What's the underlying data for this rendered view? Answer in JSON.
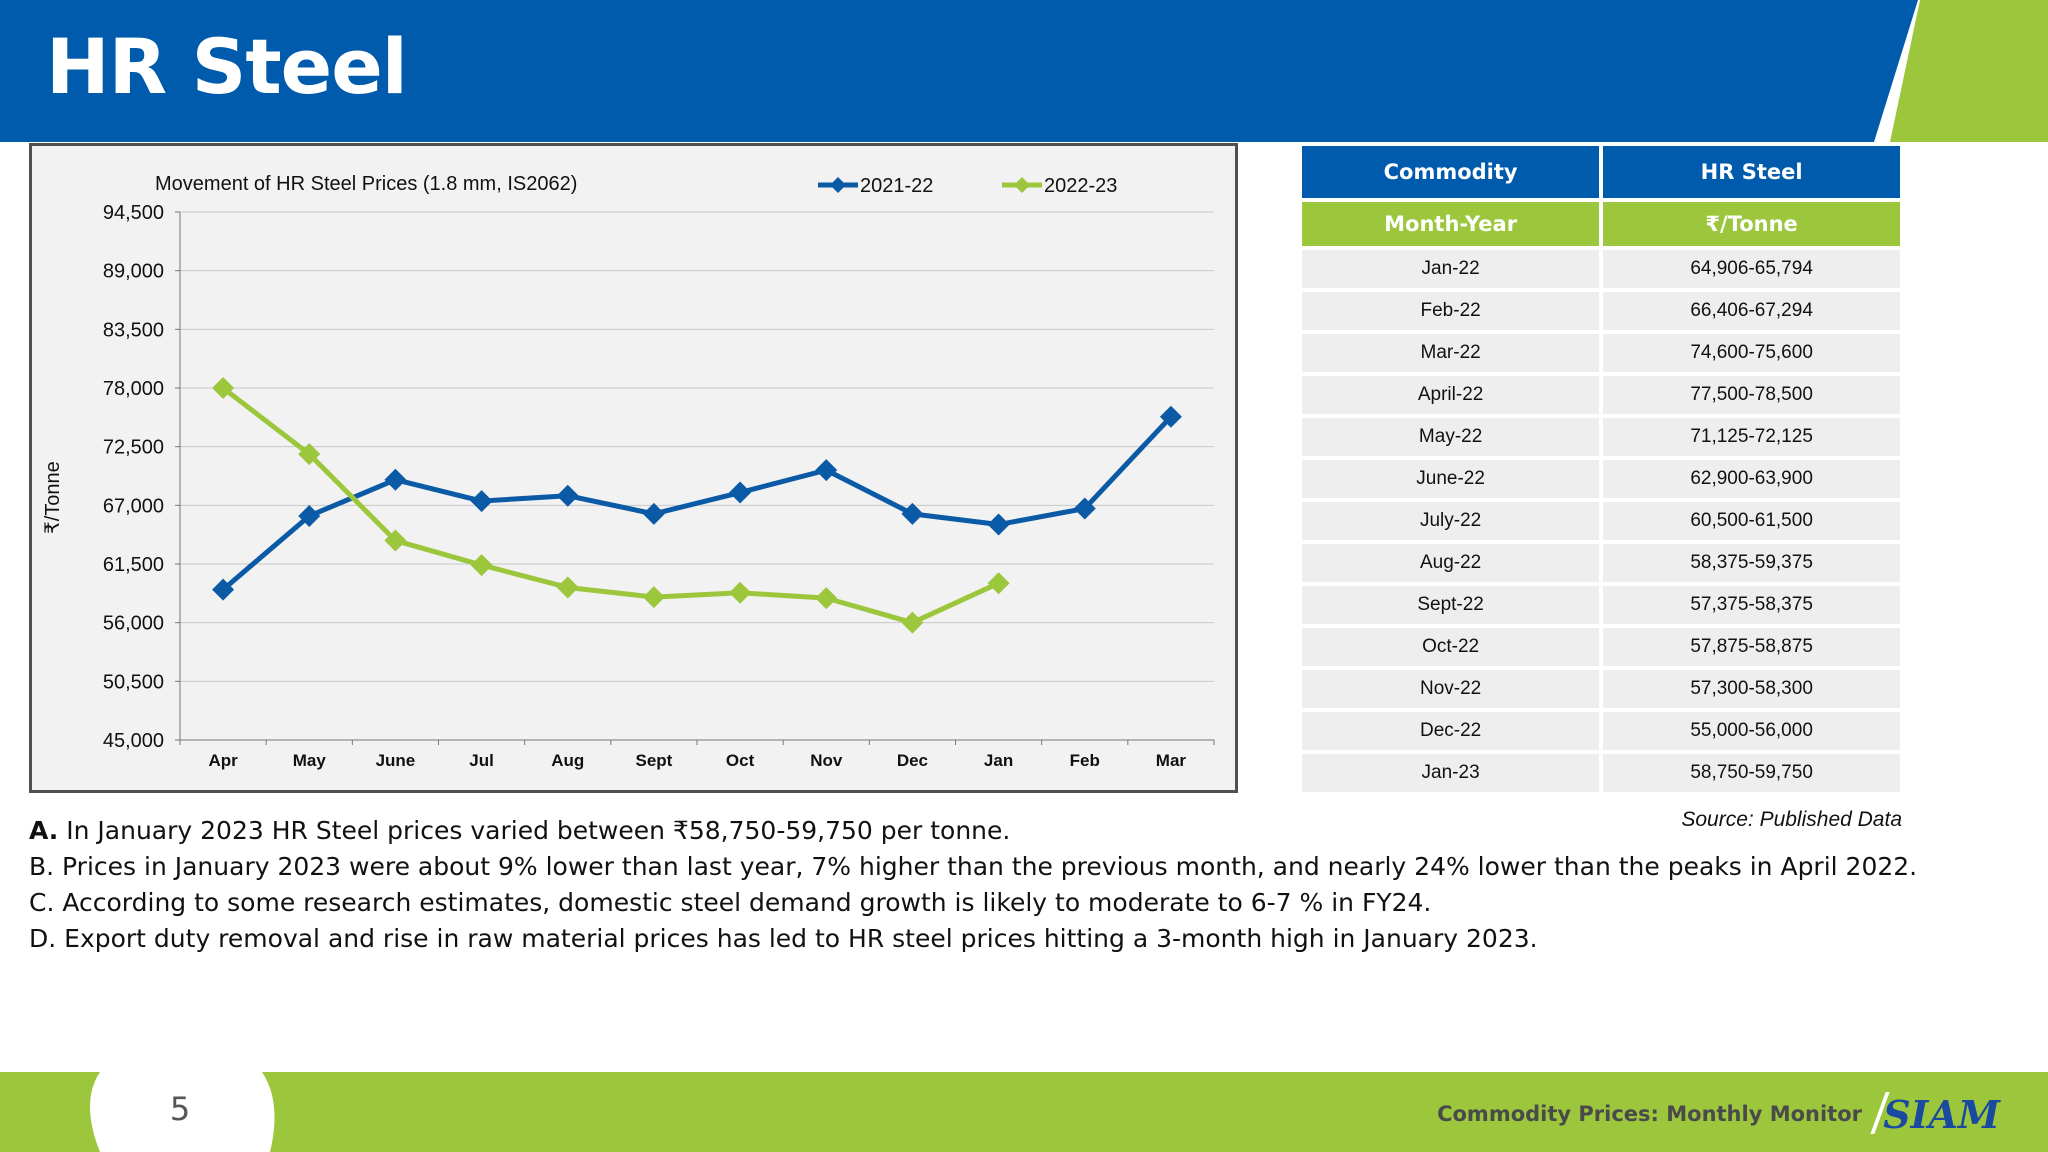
{
  "page": {
    "title": "HR Steel",
    "page_number": "5",
    "footer_caption": "Commodity Prices: Monthly Monitor",
    "footer_logo": "SIAM",
    "source": "Source: Published Data"
  },
  "colors": {
    "header_blue": "#005bac",
    "accent_green": "#9cc73c",
    "series_2021_22": "#0b5aa6",
    "series_2022_23": "#9cc73c"
  },
  "chart_data": {
    "type": "line",
    "title": "Movement of HR Steel Prices (1.8 mm, IS2062)",
    "ylabel": "₹/Tonne",
    "xlabel": "",
    "categories": [
      "Apr",
      "May",
      "June",
      "Jul",
      "Aug",
      "Sept",
      "Oct",
      "Nov",
      "Dec",
      "Jan",
      "Feb",
      "Mar"
    ],
    "ylim": [
      45000,
      94500
    ],
    "yticks": [
      "45,000",
      "50,500",
      "56,000",
      "61,500",
      "67,000",
      "72,500",
      "78,000",
      "83,500",
      "89,000",
      "94,500"
    ],
    "ytick_values": [
      45000,
      50500,
      56000,
      61500,
      67000,
      72500,
      78000,
      83500,
      89000,
      94500
    ],
    "grid": true,
    "legend_position": "top-right",
    "series": [
      {
        "name": "2021-22",
        "color": "#0b5aa6",
        "marker": "diamond",
        "values": [
          59100,
          66000,
          69400,
          67400,
          67900,
          66200,
          68200,
          70300,
          66200,
          65200,
          66700,
          75300
        ]
      },
      {
        "name": "2022-23",
        "color": "#9cc73c",
        "marker": "diamond",
        "values": [
          78000,
          71800,
          63700,
          61400,
          59300,
          58400,
          58800,
          58300,
          56000,
          59700,
          null,
          null
        ]
      }
    ]
  },
  "table": {
    "headers": [
      "Commodity",
      "HR Steel"
    ],
    "subheaders": [
      "Month-Year",
      "₹/Tonne"
    ],
    "rows": [
      [
        "Jan-22",
        "64,906-65,794"
      ],
      [
        "Feb-22",
        "66,406-67,294"
      ],
      [
        "Mar-22",
        "74,600-75,600"
      ],
      [
        "April-22",
        "77,500-78,500"
      ],
      [
        "May-22",
        "71,125-72,125"
      ],
      [
        "June-22",
        "62,900-63,900"
      ],
      [
        "July-22",
        "60,500-61,500"
      ],
      [
        "Aug-22",
        "58,375-59,375"
      ],
      [
        "Sept-22",
        "57,375-58,375"
      ],
      [
        "Oct-22",
        "57,875-58,875"
      ],
      [
        "Nov-22",
        "57,300-58,300"
      ],
      [
        "Dec-22",
        "55,000-56,000"
      ],
      [
        "Jan-23",
        "58,750-59,750"
      ]
    ]
  },
  "bullets": [
    {
      "lead": "A.",
      "text": " In January 2023 HR Steel prices varied between ₹58,750-59,750 per tonne."
    },
    {
      "lead": "",
      "text": "B. Prices in January 2023 were about 9% lower than last year, 7% higher than the previous month, and nearly 24% lower than the peaks in April 2022."
    },
    {
      "lead": "",
      "text": "C. According to some research estimates, domestic steel demand growth is likely to moderate to 6-7 % in FY24."
    },
    {
      "lead": "",
      "text": "D. Export duty removal and rise in raw material prices has led to HR steel prices hitting a 3-month high in January 2023."
    }
  ]
}
